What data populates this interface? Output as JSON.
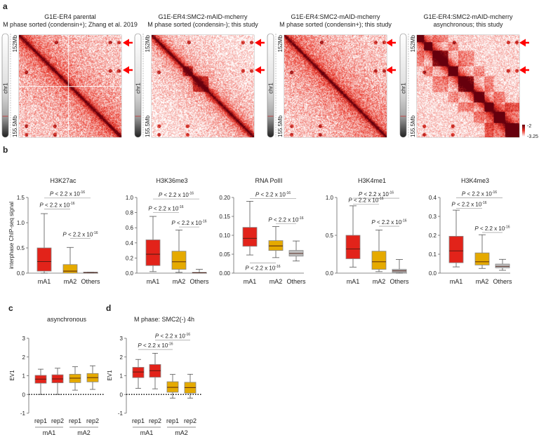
{
  "panel_a": {
    "label": "a",
    "heatmaps": [
      {
        "title1": "G1E-ER4 parental",
        "title2": "M phase sorted (condensin+); Zhang et al. 2019",
        "style": "mitotic_cross"
      },
      {
        "title1": "G1E-ER4:SMC2-mAID-mcherry",
        "title2": "M phase sorted (condensin-); this study",
        "style": "condensin_minus"
      },
      {
        "title1": "G1E-ER4:SMC2-mAID-mcherry",
        "title2": "M phase sorted (condensin+); this study",
        "style": "mitotic"
      },
      {
        "title1": "G1E-ER4:SMC2-mAID-mcherry",
        "title2": "asynchronous; this study",
        "style": "interphase"
      }
    ],
    "chromosome": "chr1",
    "start_label": "152Mb",
    "end_label": "155.5Mb",
    "colorbar": {
      "max": "-2",
      "min": "-3.25"
    },
    "colors": {
      "low": "#ffffff",
      "mid": "#e8372a",
      "high": "#67000d",
      "arrow": "#ff0000"
    }
  },
  "p_label": {
    "italic": "P",
    "text": " < 2.2 x 10",
    "exp": "-16"
  },
  "colors": {
    "mA1": "#e2231a",
    "mA2": "#e5aa00",
    "Others": "#bdbdbd"
  },
  "panel_b": {
    "label": "b",
    "ylabel": "interphase ChIP-seq signal",
    "categories": [
      "mA1",
      "mA2",
      "Others"
    ],
    "charts": [
      {
        "title": "H3K27ac",
        "ylim": [
          0,
          1.5
        ],
        "ticks": [
          "0.0",
          "0.5",
          "1.0",
          "1.5"
        ],
        "boxes": [
          [
            0.0,
            0.04,
            0.23,
            0.5,
            1.18
          ],
          [
            0.0,
            0.0,
            0.04,
            0.17,
            0.51
          ],
          [
            0.0,
            0.0,
            0.01,
            0.02,
            0.02
          ]
        ],
        "pvals": [
          {
            "from": 0,
            "to": 2,
            "y": 1.49
          },
          {
            "from": 0,
            "to": 1,
            "y": 1.27
          },
          {
            "from": 1,
            "to": 2,
            "y": 0.69
          }
        ]
      },
      {
        "title": "H3K36me3",
        "ylim": [
          0,
          1.0
        ],
        "ticks": [
          "0.0",
          "0.2",
          "0.4",
          "0.6",
          "0.8",
          "1.0"
        ],
        "boxes": [
          [
            0.02,
            0.1,
            0.25,
            0.44,
            0.75
          ],
          [
            0.01,
            0.05,
            0.15,
            0.29,
            0.57
          ],
          [
            0.0,
            0.0,
            0.005,
            0.01,
            0.05
          ]
        ],
        "pvals": [
          {
            "from": 0,
            "to": 2,
            "y": 0.98
          },
          {
            "from": 0,
            "to": 1,
            "y": 0.8
          },
          {
            "from": 1,
            "to": 2,
            "y": 0.61
          }
        ]
      },
      {
        "title": "RNA PolII",
        "ylim": [
          0,
          0.2
        ],
        "ticks": [
          "0.00",
          "0.05",
          "0.10",
          "0.15",
          "0.20"
        ],
        "boxes": [
          [
            0.048,
            0.071,
            0.092,
            0.121,
            0.19
          ],
          [
            0.041,
            0.06,
            0.072,
            0.086,
            0.123
          ],
          [
            0.032,
            0.045,
            0.052,
            0.06,
            0.085
          ]
        ],
        "pvals": [
          {
            "from": 0,
            "to": 2,
            "y": 0.197
          },
          {
            "from": 1,
            "to": 2,
            "y": 0.131
          },
          {
            "from": 0,
            "to": 1,
            "y": 0.027,
            "below": true
          }
        ]
      },
      {
        "title": "H3K4me1",
        "ylim": [
          0,
          1.0
        ],
        "ticks": [
          "0.0",
          "0.5",
          "1.0"
        ],
        "boxes": [
          [
            0.08,
            0.19,
            0.32,
            0.5,
            0.89
          ],
          [
            0.02,
            0.05,
            0.15,
            0.29,
            0.57
          ],
          [
            0.0,
            0.01,
            0.03,
            0.05,
            0.18
          ]
        ],
        "pvals": [
          {
            "from": 0,
            "to": 2,
            "y": 0.99
          },
          {
            "from": 0,
            "to": 1,
            "y": 0.91
          },
          {
            "from": 1,
            "to": 2,
            "y": 0.62
          }
        ]
      },
      {
        "title": "H3K4me3",
        "ylim": [
          0,
          0.4
        ],
        "ticks": [
          "0.0",
          "0.1",
          "0.2",
          "0.3",
          "0.4"
        ],
        "boxes": [
          [
            0.033,
            0.055,
            0.118,
            0.195,
            0.333
          ],
          [
            0.025,
            0.043,
            0.06,
            0.107,
            0.203
          ],
          [
            0.015,
            0.028,
            0.036,
            0.048,
            0.073
          ]
        ],
        "pvals": [
          {
            "from": 0,
            "to": 2,
            "y": 0.398
          },
          {
            "from": 0,
            "to": 1,
            "y": 0.342
          },
          {
            "from": 1,
            "to": 2,
            "y": 0.215
          }
        ]
      }
    ]
  },
  "panel_cd": {
    "ylabel": "EV1",
    "ylim": [
      -1,
      3
    ],
    "ticks": [
      "-1",
      "0",
      "1",
      "2",
      "3"
    ],
    "categories": [
      "rep1",
      "rep2",
      "rep1",
      "rep2"
    ],
    "groups": [
      "mA1",
      "mA2"
    ],
    "charts": [
      {
        "label": "c",
        "title": "asynchronous",
        "boxes": [
          [
            0.0,
            0.6,
            0.82,
            1.02,
            1.35
          ],
          [
            0.0,
            0.62,
            0.83,
            1.05,
            1.4
          ],
          [
            0.23,
            0.63,
            0.87,
            1.08,
            1.48
          ],
          [
            0.27,
            0.67,
            0.9,
            1.12,
            1.53
          ]
        ],
        "pvals": []
      },
      {
        "label": "d",
        "title": "M phase: SMC2(-) 4h",
        "boxes": [
          [
            0.33,
            0.9,
            1.2,
            1.45,
            1.87
          ],
          [
            0.3,
            0.92,
            1.27,
            1.6,
            2.2
          ],
          [
            -0.2,
            0.12,
            0.38,
            0.68,
            1.07
          ],
          [
            -0.2,
            0.07,
            0.37,
            0.65,
            1.08
          ]
        ],
        "pvals": [
          {
            "from": 0,
            "to": 2,
            "y": 2.4
          },
          {
            "from": 1,
            "to": 3,
            "y": 2.9
          }
        ]
      }
    ]
  },
  "chart_data": [
    {
      "type": "heatmap",
      "title": "Hi-C contact maps chr1 152Mb-155.5Mb",
      "colorbar_range": [
        "-3.25",
        "-2"
      ]
    },
    {
      "type": "box",
      "panel": "b",
      "ylabel": "interphase ChIP-seq signal",
      "series_order": "min,q1,median,q3,max"
    },
    {
      "type": "box",
      "panel": "c/d",
      "ylabel": "EV1",
      "series_order": "min,q1,median,q3,max"
    }
  ]
}
